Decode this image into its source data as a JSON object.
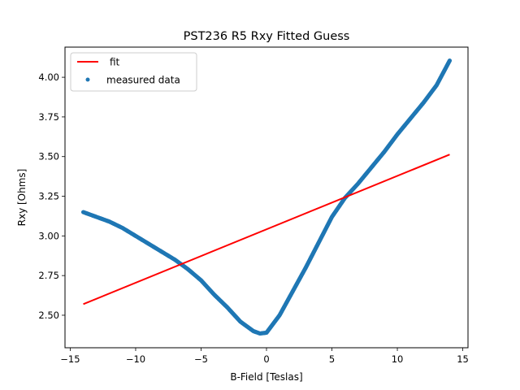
{
  "chart_data": {
    "type": "scatter",
    "title": "PST236 R5 Rxy Fitted Guess",
    "xlabel": "B-Field [Teslas]",
    "ylabel": "Rxy [Ohms]",
    "xlim": [
      -15.4,
      15.4
    ],
    "ylim": [
      2.295,
      4.19
    ],
    "xticks": [
      -15,
      -10,
      -5,
      0,
      5,
      10,
      15
    ],
    "xtick_labels": [
      "−15",
      "−10",
      "−5",
      "0",
      "5",
      "10",
      "15"
    ],
    "yticks": [
      2.5,
      2.75,
      3.0,
      3.25,
      3.5,
      3.75,
      4.0
    ],
    "ytick_labels": [
      "2.50",
      "2.75",
      "3.00",
      "3.25",
      "3.50",
      "3.75",
      "4.00"
    ],
    "grid": false,
    "legend_position": "upper-left",
    "series": [
      {
        "name": "fit",
        "type": "line",
        "color": "#ff0000",
        "x": [
          -14,
          14
        ],
        "y": [
          2.57,
          3.513
        ]
      },
      {
        "name": "measured data",
        "type": "scatter",
        "color": "#1f77b4",
        "x": [
          -14,
          -13,
          -12,
          -11,
          -10,
          -9,
          -8,
          -7,
          -6,
          -5,
          -4,
          -3,
          -2,
          -1,
          -0.5,
          0,
          1,
          2,
          3,
          4,
          5,
          6,
          7,
          8,
          9,
          10,
          11,
          12,
          13,
          14
        ],
        "y": [
          3.15,
          3.12,
          3.09,
          3.05,
          3.0,
          2.95,
          2.9,
          2.85,
          2.79,
          2.72,
          2.63,
          2.55,
          2.46,
          2.4,
          2.385,
          2.39,
          2.5,
          2.65,
          2.8,
          2.96,
          3.12,
          3.24,
          3.33,
          3.43,
          3.53,
          3.64,
          3.74,
          3.84,
          3.95,
          4.105
        ]
      }
    ]
  }
}
